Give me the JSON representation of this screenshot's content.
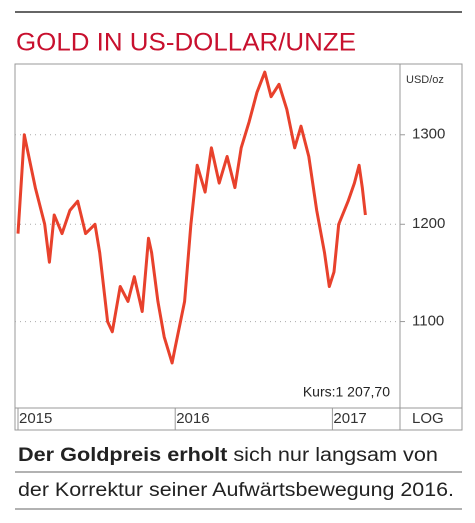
{
  "chart_data": {
    "type": "line",
    "title": "GOLD IN US-DOLLAR/UNZE",
    "y_label": "USD/oz",
    "scale_label": "LOG",
    "log": true,
    "grid": true,
    "annotation": "Kurs:1 207,70",
    "caption": [
      "Der Goldpreis erholt",
      " sich nur langsam von",
      "der Korrektur seiner Aufwärtsbewegung 2016."
    ],
    "xlim": [
      2015,
      2017.43
    ],
    "xticks": [
      2015,
      2016,
      2017
    ],
    "ylim": [
      1020,
      1380
    ],
    "yticks": [
      1100,
      1200,
      1300
    ],
    "series": [
      {
        "color": "#e8412c",
        "x": [
          2015.0,
          2015.04,
          2015.11,
          2015.17,
          2015.2,
          2015.23,
          2015.28,
          2015.33,
          2015.38,
          2015.43,
          2015.49,
          2015.52,
          2015.57,
          2015.6,
          2015.65,
          2015.7,
          2015.74,
          2015.79,
          2015.83,
          2015.85,
          2015.89,
          2015.93,
          2015.98,
          2016.0,
          2016.06,
          2016.1,
          2016.14,
          2016.19,
          2016.23,
          2016.28,
          2016.33,
          2016.38,
          2016.42,
          2016.47,
          2016.52,
          2016.57,
          2016.61,
          2016.66,
          2016.71,
          2016.76,
          2016.8,
          2016.85,
          2016.9,
          2016.95,
          2016.98,
          2017.01,
          2017.04,
          2017.1,
          2017.14,
          2017.17,
          2017.19,
          2017.21
        ],
        "values": [
          1190,
          1300,
          1240,
          1200,
          1160,
          1210,
          1190,
          1215,
          1225,
          1190,
          1200,
          1170,
          1100,
          1090,
          1135,
          1120,
          1145,
          1110,
          1185,
          1170,
          1120,
          1085,
          1060,
          1075,
          1120,
          1200,
          1265,
          1235,
          1285,
          1245,
          1275,
          1240,
          1285,
          1315,
          1350,
          1375,
          1345,
          1360,
          1330,
          1285,
          1310,
          1275,
          1215,
          1170,
          1135,
          1150,
          1200,
          1225,
          1245,
          1265,
          1240,
          1210
        ]
      }
    ]
  }
}
